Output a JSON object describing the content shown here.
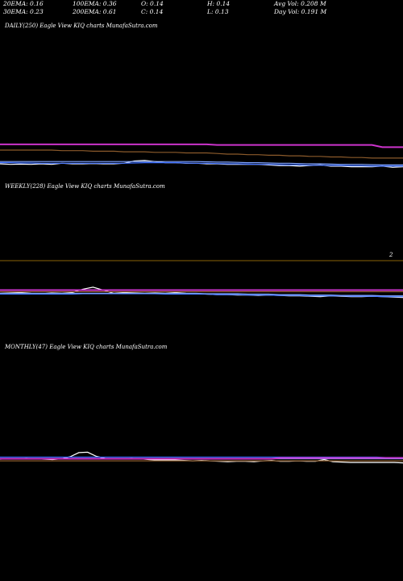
{
  "header": {
    "row1": [
      {
        "text": "20EMA: 0.16"
      },
      {
        "text": "100EMA: 0.36"
      },
      {
        "text": "O: 0.14"
      },
      {
        "text": "H: 0.14"
      },
      {
        "text": "Avg Vol: 0.208  M"
      }
    ],
    "row2": [
      {
        "text": "30EMA: 0.23"
      },
      {
        "text": "200EMA: 0.61"
      },
      {
        "text": "C: 0.14"
      },
      {
        "text": "L: 0.13"
      },
      {
        "text": "Day Vol: 0.191 M"
      }
    ]
  },
  "panels": {
    "daily": {
      "label": "DAILY(250) Eagle   View  KIQ charts MunafaSutra.com"
    },
    "weekly": {
      "label": "WEEKLY(228) Eagle   View  KIQ charts MunafaSutra.com",
      "tick": "2"
    },
    "monthly": {
      "label": "MONTHLY(47) Eagle   View  KIQ charts MunafaSutra.com"
    }
  },
  "colors": {
    "price": "#ffffff",
    "ema20": "#3a6cff",
    "ema30": "#7fa3ff",
    "ema100": "#cc33cc",
    "ema200": "#8b5a2b",
    "grid": "#b8860b",
    "extra": "#999999"
  },
  "chart_data": [
    {
      "type": "line",
      "name": "daily",
      "ylim": [
        0.05,
        0.9
      ],
      "series": [
        {
          "name": "price",
          "color": "#ffffff",
          "values": [
            0.16,
            0.15,
            0.155,
            0.15,
            0.16,
            0.15,
            0.17,
            0.16,
            0.16,
            0.165,
            0.16,
            0.16,
            0.17,
            0.21,
            0.22,
            0.2,
            0.18,
            0.18,
            0.17,
            0.17,
            0.16,
            0.16,
            0.15,
            0.15,
            0.15,
            0.15,
            0.14,
            0.13,
            0.13,
            0.12,
            0.13,
            0.14,
            0.12,
            0.12,
            0.11,
            0.11,
            0.11,
            0.12,
            0.1,
            0.11
          ]
        },
        {
          "name": "ema20",
          "color": "#3a6cff",
          "values": [
            0.18,
            0.18,
            0.175,
            0.175,
            0.17,
            0.17,
            0.17,
            0.17,
            0.17,
            0.17,
            0.17,
            0.17,
            0.17,
            0.175,
            0.18,
            0.18,
            0.18,
            0.18,
            0.175,
            0.17,
            0.17,
            0.165,
            0.16,
            0.16,
            0.155,
            0.15,
            0.15,
            0.145,
            0.14,
            0.14,
            0.135,
            0.135,
            0.13,
            0.13,
            0.125,
            0.125,
            0.12,
            0.12,
            0.12,
            0.12
          ]
        },
        {
          "name": "ema30",
          "color": "#7fa3ff",
          "values": [
            0.2,
            0.2,
            0.2,
            0.2,
            0.2,
            0.2,
            0.2,
            0.2,
            0.2,
            0.2,
            0.2,
            0.2,
            0.2,
            0.2,
            0.2,
            0.2,
            0.2,
            0.2,
            0.2,
            0.2,
            0.195,
            0.19,
            0.19,
            0.185,
            0.18,
            0.18,
            0.175,
            0.17,
            0.17,
            0.165,
            0.16,
            0.16,
            0.155,
            0.15,
            0.15,
            0.15,
            0.145,
            0.14,
            0.14,
            0.14
          ]
        },
        {
          "name": "ema100",
          "color": "#cc33cc",
          "values": [
            0.5,
            0.5,
            0.5,
            0.5,
            0.5,
            0.5,
            0.5,
            0.5,
            0.5,
            0.5,
            0.5,
            0.5,
            0.5,
            0.5,
            0.5,
            0.5,
            0.5,
            0.5,
            0.5,
            0.5,
            0.5,
            0.49,
            0.49,
            0.49,
            0.49,
            0.49,
            0.49,
            0.49,
            0.49,
            0.49,
            0.49,
            0.49,
            0.49,
            0.49,
            0.49,
            0.49,
            0.49,
            0.45,
            0.45,
            0.45
          ]
        },
        {
          "name": "ema200",
          "color": "#8b5a2b",
          "values": [
            0.4,
            0.4,
            0.4,
            0.4,
            0.4,
            0.4,
            0.39,
            0.39,
            0.39,
            0.38,
            0.38,
            0.38,
            0.37,
            0.37,
            0.37,
            0.36,
            0.36,
            0.36,
            0.35,
            0.35,
            0.35,
            0.34,
            0.33,
            0.33,
            0.32,
            0.32,
            0.31,
            0.31,
            0.3,
            0.3,
            0.29,
            0.29,
            0.28,
            0.28,
            0.27,
            0.27,
            0.26,
            0.26,
            0.26,
            0.26
          ]
        }
      ]
    },
    {
      "type": "line",
      "name": "weekly",
      "ylim": [
        0.05,
        0.9
      ],
      "series": [
        {
          "name": "price",
          "color": "#ffffff",
          "values": [
            0.2,
            0.21,
            0.22,
            0.2,
            0.19,
            0.21,
            0.2,
            0.22,
            0.3,
            0.35,
            0.28,
            0.2,
            0.22,
            0.21,
            0.2,
            0.21,
            0.2,
            0.22,
            0.2,
            0.19,
            0.18,
            0.17,
            0.17,
            0.16,
            0.16,
            0.15,
            0.16,
            0.15,
            0.14,
            0.14,
            0.13,
            0.12,
            0.14,
            0.13,
            0.12,
            0.12,
            0.13,
            0.12,
            0.11,
            0.1
          ]
        },
        {
          "name": "ema20",
          "color": "#3a6cff",
          "values": [
            0.18,
            0.18,
            0.18,
            0.18,
            0.18,
            0.18,
            0.18,
            0.18,
            0.19,
            0.19,
            0.19,
            0.19,
            0.19,
            0.19,
            0.19,
            0.19,
            0.18,
            0.18,
            0.18,
            0.18,
            0.18,
            0.17,
            0.17,
            0.17,
            0.16,
            0.16,
            0.16,
            0.15,
            0.15,
            0.15,
            0.14,
            0.14,
            0.14,
            0.14,
            0.13,
            0.13,
            0.13,
            0.12,
            0.12,
            0.12
          ]
        },
        {
          "name": "ema30",
          "color": "#7fa3ff",
          "values": [
            0.2,
            0.2,
            0.2,
            0.2,
            0.2,
            0.2,
            0.2,
            0.2,
            0.2,
            0.2,
            0.2,
            0.2,
            0.2,
            0.2,
            0.2,
            0.2,
            0.2,
            0.2,
            0.2,
            0.2,
            0.19,
            0.19,
            0.19,
            0.19,
            0.18,
            0.18,
            0.18,
            0.17,
            0.17,
            0.17,
            0.16,
            0.16,
            0.16,
            0.15,
            0.15,
            0.15,
            0.15,
            0.14,
            0.14,
            0.14
          ]
        },
        {
          "name": "ema100",
          "color": "#cc33cc",
          "values": [
            0.28,
            0.28,
            0.28,
            0.28,
            0.28,
            0.28,
            0.28,
            0.28,
            0.28,
            0.28,
            0.28,
            0.28,
            0.28,
            0.28,
            0.28,
            0.28,
            0.28,
            0.28,
            0.28,
            0.28,
            0.28,
            0.28,
            0.28,
            0.28,
            0.28,
            0.28,
            0.28,
            0.28,
            0.28,
            0.28,
            0.28,
            0.28,
            0.28,
            0.28,
            0.28,
            0.28,
            0.28,
            0.28,
            0.28,
            0.28
          ]
        },
        {
          "name": "ema200",
          "color": "#8b5a2b",
          "values": [
            0.24,
            0.24,
            0.24,
            0.24,
            0.24,
            0.24,
            0.24,
            0.24,
            0.24,
            0.24,
            0.24,
            0.24,
            0.24,
            0.24,
            0.24,
            0.24,
            0.24,
            0.24,
            0.24,
            0.24,
            0.24,
            0.24,
            0.24,
            0.24,
            0.24,
            0.24,
            0.24,
            0.24,
            0.24,
            0.24,
            0.24,
            0.24,
            0.24,
            0.24,
            0.24,
            0.24,
            0.24,
            0.24,
            0.24,
            0.24
          ]
        }
      ]
    },
    {
      "type": "line",
      "name": "monthly",
      "ylim": [
        0.05,
        0.9
      ],
      "series": [
        {
          "name": "price",
          "color": "#ffffff",
          "values": [
            0.19,
            0.2,
            0.2,
            0.21,
            0.2,
            0.19,
            0.18,
            0.2,
            0.25,
            0.35,
            0.36,
            0.26,
            0.21,
            0.2,
            0.2,
            0.21,
            0.2,
            0.18,
            0.17,
            0.17,
            0.17,
            0.16,
            0.15,
            0.16,
            0.15,
            0.14,
            0.13,
            0.14,
            0.14,
            0.13,
            0.15,
            0.16,
            0.14,
            0.14,
            0.15,
            0.14,
            0.14,
            0.18,
            0.13,
            0.12,
            0.11,
            0.11,
            0.11,
            0.11,
            0.11,
            0.11,
            0.1
          ]
        },
        {
          "name": "ema20",
          "color": "#3a6cff",
          "values": [
            0.24,
            0.24,
            0.24,
            0.24,
            0.24,
            0.24,
            0.24,
            0.24,
            0.24,
            0.24,
            0.24,
            0.24,
            0.24,
            0.24,
            0.24,
            0.24,
            0.24,
            0.24,
            0.24,
            0.24,
            0.24,
            0.24,
            0.24,
            0.24,
            0.24,
            0.24,
            0.24,
            0.24,
            0.24,
            0.24,
            0.24,
            0.24,
            0.24,
            0.24,
            0.24,
            0.24,
            0.24,
            0.24,
            0.24,
            0.24,
            0.24,
            0.24,
            0.24,
            0.24,
            0.23,
            0.23,
            0.23
          ]
        },
        {
          "name": "ema30",
          "color": "#7fa3ff",
          "values": [
            0.2,
            0.2,
            0.2,
            0.2,
            0.2,
            0.2,
            0.2,
            0.2,
            0.2,
            0.2,
            0.2,
            0.2,
            0.2,
            0.2,
            0.2,
            0.2,
            0.2,
            0.2,
            0.2,
            0.2,
            0.2,
            0.2,
            0.2,
            0.2,
            0.2,
            0.2,
            0.2,
            0.2,
            0.2,
            0.2,
            0.2,
            0.2,
            0.2,
            0.2,
            0.2,
            0.2,
            0.2,
            0.2,
            0.2,
            0.2,
            0.2,
            0.2,
            0.2,
            0.2,
            0.2,
            0.2,
            0.2
          ]
        },
        {
          "name": "ema100",
          "color": "#cc33cc",
          "values": [
            0.2,
            0.2,
            0.2,
            0.2,
            0.2,
            0.2,
            0.2,
            0.2,
            0.2,
            0.2,
            0.2,
            0.2,
            0.2,
            0.2,
            0.2,
            0.2,
            0.2,
            0.2,
            0.2,
            0.2,
            0.2,
            0.2,
            0.2,
            0.2,
            0.2,
            0.2,
            0.2,
            0.2,
            0.2,
            0.2,
            0.2,
            0.2,
            0.22,
            0.22,
            0.22,
            0.22,
            0.22,
            0.22,
            0.22,
            0.22,
            0.22,
            0.22,
            0.22,
            0.22,
            0.22,
            0.22,
            0.22
          ]
        },
        {
          "name": "ema200",
          "color": "#8b5a2b",
          "values": [
            0.15,
            0.15,
            0.15,
            0.15,
            0.15,
            0.15,
            0.15,
            0.15,
            0.15,
            0.15,
            0.15,
            0.15,
            0.15,
            0.15,
            0.15,
            0.15,
            0.15,
            0.15,
            0.15,
            0.15,
            0.15,
            0.15,
            0.15,
            0.15,
            0.15,
            0.15,
            0.15,
            0.15,
            0.15,
            0.15,
            0.15,
            0.15,
            0.15,
            0.15,
            0.15,
            0.15,
            0.15,
            0.15,
            0.15,
            0.15,
            0.15,
            0.15,
            0.15,
            0.15,
            0.15,
            0.15,
            0.15
          ]
        }
      ]
    }
  ]
}
